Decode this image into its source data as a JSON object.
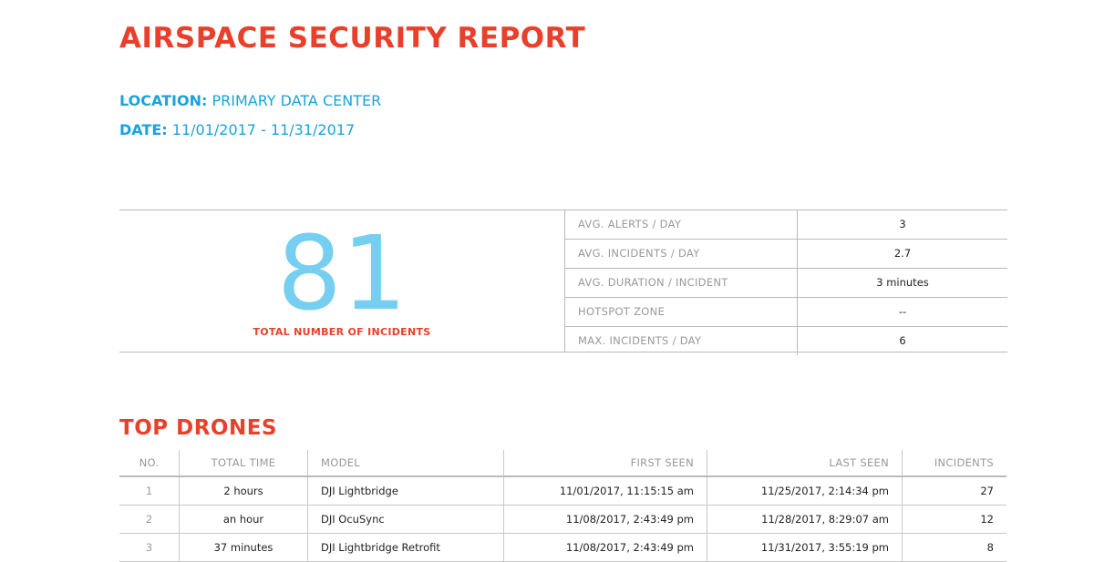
{
  "header": {
    "title": "AIRSPACE SECURITY REPORT",
    "location_label": "LOCATION:",
    "location_value": "PRIMARY DATA CENTER",
    "date_label": "DATE:",
    "date_value": "11/01/2017 - 11/31/2017"
  },
  "summary": {
    "total_incidents": "81",
    "total_label": "TOTAL NUMBER OF INCIDENTS",
    "stats": [
      {
        "label": "AVG. ALERTS / DAY",
        "value": "3"
      },
      {
        "label": "AVG. INCIDENTS / DAY",
        "value": "2.7"
      },
      {
        "label": "AVG. DURATION / INCIDENT",
        "value": "3 minutes"
      },
      {
        "label": "HOTSPOT ZONE",
        "value": "--"
      },
      {
        "label": "MAX. INCIDENTS / DAY",
        "value": "6"
      }
    ]
  },
  "top_drones": {
    "title": "TOP DRONES",
    "columns": [
      "NO.",
      "TOTAL TIME",
      "MODEL",
      "FIRST SEEN",
      "LAST SEEN",
      "INCIDENTS"
    ],
    "rows": [
      [
        "1",
        "2 hours",
        "DJI Lightbridge",
        "11/01/2017, 11:15:15 am",
        "11/25/2017, 2:14:34 pm",
        "27"
      ],
      [
        "2",
        "an hour",
        "DJI OcuSync",
        "11/08/2017, 2:43:49 pm",
        "11/28/2017, 8:29:07 am",
        "12"
      ],
      [
        "3",
        "37 minutes",
        "DJI Lightbridge Retrofit",
        "11/08/2017, 2:43:49 pm",
        "11/31/2017, 3:55:19 pm",
        "8"
      ]
    ]
  },
  "colors": {
    "accent_red": "#e8402a",
    "accent_blue": "#1aa3dc",
    "big_number_blue": "#76cff0"
  }
}
